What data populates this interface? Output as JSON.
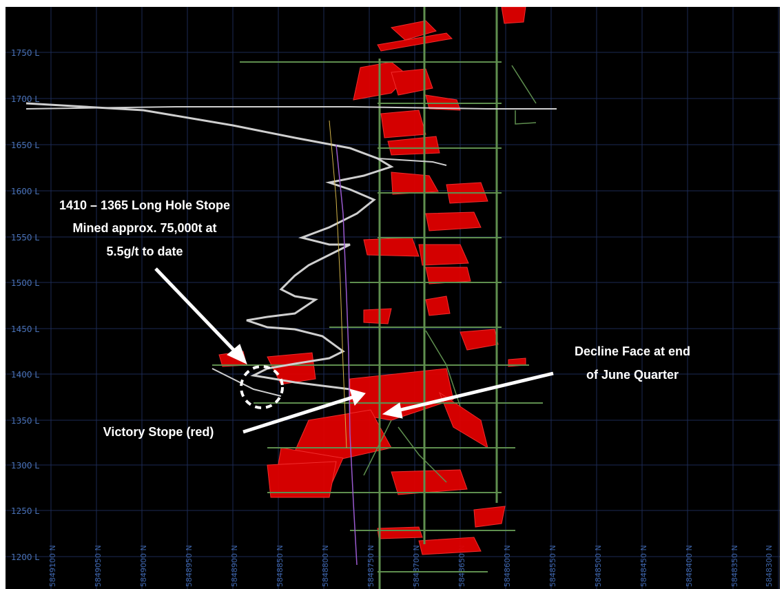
{
  "level_labels": [
    "1750 L",
    "1700 L",
    "1650 L",
    "1600 L",
    "1550 L",
    "1500 L",
    "1450 L",
    "1400 L",
    "1350 L",
    "1300 L",
    "1250 L",
    "1200 L"
  ],
  "northing_labels": [
    "5849100 N",
    "5849050 N",
    "5849000 N",
    "5848950 N",
    "5848900 N",
    "5848850 N",
    "5848800 N",
    "5848750 N",
    "5848700 N",
    "5848650 N",
    "5848600 N",
    "5848550 N",
    "5848500 N",
    "5848450 N",
    "5848400 N",
    "5848350 N",
    "5848300 N"
  ],
  "annotations": {
    "long_hole_stope": [
      "1410 – 1365 Long Hole Stope",
      "Mined approx. 75,000t at",
      "5.5g/t to date"
    ],
    "decline_face": [
      "Decline Face at end",
      "of June Quarter"
    ],
    "victory_stope": "Victory Stope (red)"
  },
  "colors": {
    "background": "#000000",
    "grid": "#1c2a55",
    "level_text": "#4a73b8",
    "stope": "#e00000",
    "development": "#5f8f4f",
    "decline": "#cfcfcf",
    "annotation": "#ffffff"
  }
}
